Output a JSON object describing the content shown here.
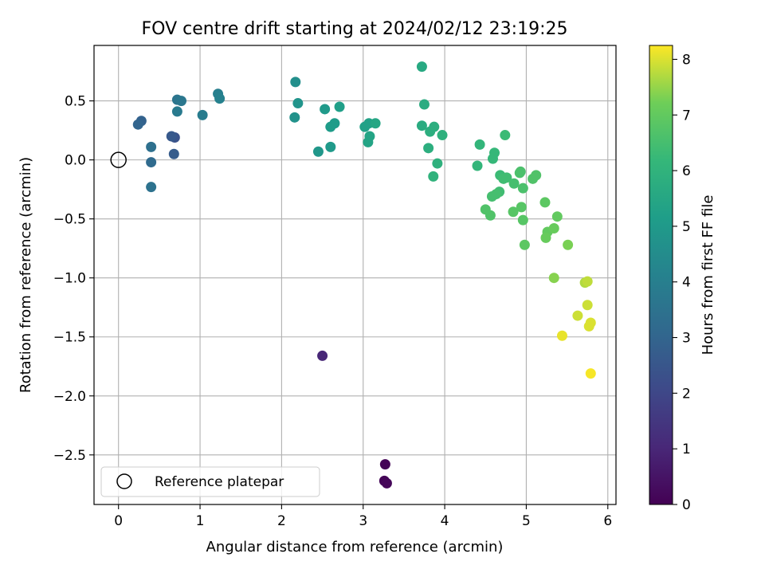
{
  "chart_data": {
    "type": "scatter",
    "title": "FOV centre drift starting at 2024/02/12 23:19:25",
    "xlabel": "Angular distance from reference (arcmin)",
    "ylabel": "Rotation from reference (arcmin)",
    "xlim": [
      -0.3,
      6.1
    ],
    "ylim": [
      -2.92,
      0.97
    ],
    "x_ticks": [
      0,
      1,
      2,
      3,
      4,
      5,
      6
    ],
    "x_tick_labels": [
      "0",
      "1",
      "2",
      "3",
      "4",
      "5",
      "6"
    ],
    "y_ticks": [
      0.5,
      0.0,
      -0.5,
      -1.0,
      -1.5,
      -2.0,
      -2.5
    ],
    "y_tick_labels": [
      "0.5",
      "0.0",
      "−0.5",
      "−1.0",
      "−1.5",
      "−2.0",
      "−2.5"
    ],
    "grid": true,
    "colormap": "viridis",
    "colorbar": {
      "label": "Hours from first FF file",
      "range": [
        0,
        8.25
      ],
      "ticks": [
        0,
        1,
        2,
        3,
        4,
        5,
        6,
        7,
        8
      ],
      "tick_labels": [
        "0",
        "1",
        "2",
        "3",
        "4",
        "5",
        "6",
        "7",
        "8"
      ]
    },
    "legend": {
      "position": "lower-left",
      "entries": [
        "Reference platepar"
      ]
    },
    "reference": {
      "x": 0.0,
      "y": 0.0
    },
    "points": [
      {
        "x": 3.27,
        "y": -2.58,
        "c": 0.05
      },
      {
        "x": 3.26,
        "y": -2.72,
        "c": 0.1
      },
      {
        "x": 3.29,
        "y": -2.74,
        "c": 0.15
      },
      {
        "x": 2.5,
        "y": -1.66,
        "c": 1.0
      },
      {
        "x": 0.69,
        "y": 0.19,
        "c": 2.4
      },
      {
        "x": 0.65,
        "y": 0.2,
        "c": 2.6
      },
      {
        "x": 0.68,
        "y": 0.05,
        "c": 2.7
      },
      {
        "x": 0.28,
        "y": 0.33,
        "c": 2.9
      },
      {
        "x": 0.24,
        "y": 0.3,
        "c": 3.0
      },
      {
        "x": 0.4,
        "y": -0.02,
        "c": 3.2
      },
      {
        "x": 0.4,
        "y": 0.11,
        "c": 3.4
      },
      {
        "x": 0.4,
        "y": -0.23,
        "c": 3.5
      },
      {
        "x": 0.72,
        "y": 0.51,
        "c": 3.6
      },
      {
        "x": 0.77,
        "y": 0.5,
        "c": 3.7
      },
      {
        "x": 0.72,
        "y": 0.41,
        "c": 3.8
      },
      {
        "x": 1.03,
        "y": 0.38,
        "c": 3.9
      },
      {
        "x": 1.22,
        "y": 0.56,
        "c": 4.0
      },
      {
        "x": 1.24,
        "y": 0.52,
        "c": 4.1
      },
      {
        "x": 2.17,
        "y": 0.66,
        "c": 4.6
      },
      {
        "x": 2.16,
        "y": 0.36,
        "c": 4.7
      },
      {
        "x": 2.2,
        "y": 0.48,
        "c": 4.8
      },
      {
        "x": 2.45,
        "y": 0.07,
        "c": 4.9
      },
      {
        "x": 2.53,
        "y": 0.43,
        "c": 5.0
      },
      {
        "x": 2.6,
        "y": 0.11,
        "c": 5.0
      },
      {
        "x": 2.6,
        "y": 0.28,
        "c": 5.1
      },
      {
        "x": 2.65,
        "y": 0.31,
        "c": 5.1
      },
      {
        "x": 2.71,
        "y": 0.45,
        "c": 5.2
      },
      {
        "x": 3.02,
        "y": 0.28,
        "c": 5.3
      },
      {
        "x": 3.07,
        "y": 0.31,
        "c": 5.3
      },
      {
        "x": 3.06,
        "y": 0.15,
        "c": 5.4
      },
      {
        "x": 3.08,
        "y": 0.2,
        "c": 5.4
      },
      {
        "x": 3.15,
        "y": 0.31,
        "c": 5.5
      },
      {
        "x": 3.72,
        "y": 0.79,
        "c": 5.6
      },
      {
        "x": 3.75,
        "y": 0.47,
        "c": 5.7
      },
      {
        "x": 3.72,
        "y": 0.29,
        "c": 5.7
      },
      {
        "x": 3.82,
        "y": 0.24,
        "c": 5.8
      },
      {
        "x": 3.87,
        "y": 0.28,
        "c": 5.8
      },
      {
        "x": 3.8,
        "y": 0.1,
        "c": 5.8
      },
      {
        "x": 3.97,
        "y": 0.21,
        "c": 5.9
      },
      {
        "x": 3.91,
        "y": -0.03,
        "c": 5.9
      },
      {
        "x": 3.86,
        "y": -0.14,
        "c": 6.0
      },
      {
        "x": 4.43,
        "y": 0.13,
        "c": 6.1
      },
      {
        "x": 4.4,
        "y": -0.05,
        "c": 6.1
      },
      {
        "x": 4.61,
        "y": 0.06,
        "c": 6.2
      },
      {
        "x": 4.59,
        "y": 0.01,
        "c": 6.2
      },
      {
        "x": 4.74,
        "y": 0.21,
        "c": 6.3
      },
      {
        "x": 4.68,
        "y": -0.13,
        "c": 6.3
      },
      {
        "x": 4.72,
        "y": -0.16,
        "c": 6.4
      },
      {
        "x": 4.76,
        "y": -0.15,
        "c": 6.4
      },
      {
        "x": 4.67,
        "y": -0.27,
        "c": 6.4
      },
      {
        "x": 4.63,
        "y": -0.29,
        "c": 6.5
      },
      {
        "x": 4.58,
        "y": -0.31,
        "c": 6.5
      },
      {
        "x": 4.85,
        "y": -0.2,
        "c": 6.5
      },
      {
        "x": 4.92,
        "y": -0.11,
        "c": 6.6
      },
      {
        "x": 4.93,
        "y": -0.1,
        "c": 6.6
      },
      {
        "x": 4.96,
        "y": -0.24,
        "c": 6.6
      },
      {
        "x": 5.08,
        "y": -0.16,
        "c": 6.7
      },
      {
        "x": 5.12,
        "y": -0.13,
        "c": 6.7
      },
      {
        "x": 4.5,
        "y": -0.42,
        "c": 6.7
      },
      {
        "x": 4.56,
        "y": -0.47,
        "c": 6.7
      },
      {
        "x": 4.84,
        "y": -0.44,
        "c": 6.8
      },
      {
        "x": 4.94,
        "y": -0.4,
        "c": 6.8
      },
      {
        "x": 4.96,
        "y": -0.51,
        "c": 6.8
      },
      {
        "x": 4.98,
        "y": -0.72,
        "c": 6.9
      },
      {
        "x": 5.23,
        "y": -0.36,
        "c": 6.9
      },
      {
        "x": 5.38,
        "y": -0.48,
        "c": 7.0
      },
      {
        "x": 5.26,
        "y": -0.61,
        "c": 7.0
      },
      {
        "x": 5.34,
        "y": -0.58,
        "c": 7.1
      },
      {
        "x": 5.24,
        "y": -0.66,
        "c": 7.1
      },
      {
        "x": 5.51,
        "y": -0.72,
        "c": 7.3
      },
      {
        "x": 5.34,
        "y": -1.0,
        "c": 7.4
      },
      {
        "x": 5.72,
        "y": -1.04,
        "c": 7.7
      },
      {
        "x": 5.75,
        "y": -1.03,
        "c": 7.8
      },
      {
        "x": 5.75,
        "y": -1.23,
        "c": 7.9
      },
      {
        "x": 5.63,
        "y": -1.32,
        "c": 7.9
      },
      {
        "x": 5.79,
        "y": -1.38,
        "c": 8.0
      },
      {
        "x": 5.77,
        "y": -1.41,
        "c": 8.0
      },
      {
        "x": 5.44,
        "y": -1.49,
        "c": 8.1
      },
      {
        "x": 5.79,
        "y": -1.81,
        "c": 8.2
      }
    ]
  }
}
